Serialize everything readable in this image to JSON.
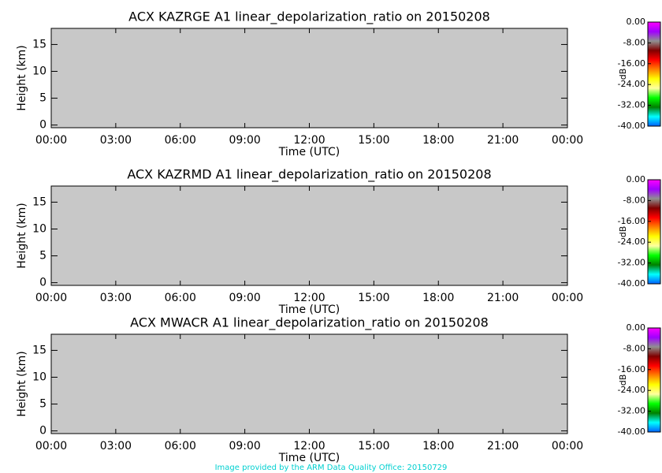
{
  "chart_data": [
    {
      "type": "heatmap",
      "title": "ACX KAZRGE A1 linear_depolarization_ratio on 20150208",
      "x_label": "Time (UTC)",
      "y_label": "Height (km)",
      "xlim": [
        0,
        24
      ],
      "xticks": [
        {
          "value": 0,
          "label": "00:00"
        },
        {
          "value": 3,
          "label": "03:00"
        },
        {
          "value": 6,
          "label": "06:00"
        },
        {
          "value": 9,
          "label": "09:00"
        },
        {
          "value": 12,
          "label": "12:00"
        },
        {
          "value": 15,
          "label": "15:00"
        },
        {
          "value": 18,
          "label": "18:00"
        },
        {
          "value": 21,
          "label": "21:00"
        },
        {
          "value": 24,
          "label": "00:00"
        }
      ],
      "ylim": [
        -0.5,
        18
      ],
      "yticks": [
        0,
        5,
        10,
        15
      ],
      "background": "#c8c8c8",
      "colorbar": {
        "label": "dB",
        "clim": [
          -40,
          0
        ],
        "ticks": [
          {
            "value": 0,
            "label": "0.00"
          },
          {
            "value": -8,
            "label": "-8.00"
          },
          {
            "value": -16,
            "label": "-16.00"
          },
          {
            "value": -24,
            "label": "-24.00"
          },
          {
            "value": -32,
            "label": "-32.00"
          },
          {
            "value": -40,
            "label": "-40.00"
          }
        ],
        "colormap": [
          "#ff00ff",
          "#a000ff",
          "#909090",
          "#800000",
          "#ff0000",
          "#ff8000",
          "#ffff00",
          "#ffffa0",
          "#00ff00",
          "#008000",
          "#00ffff",
          "#0060ff"
        ]
      }
    },
    {
      "type": "heatmap",
      "title": "ACX KAZRMD A1 linear_depolarization_ratio on 20150208",
      "x_label": "Time (UTC)",
      "y_label": "Height (km)",
      "xlim": [
        0,
        24
      ],
      "xticks": [
        {
          "value": 0,
          "label": "00:00"
        },
        {
          "value": 3,
          "label": "03:00"
        },
        {
          "value": 6,
          "label": "06:00"
        },
        {
          "value": 9,
          "label": "09:00"
        },
        {
          "value": 12,
          "label": "12:00"
        },
        {
          "value": 15,
          "label": "15:00"
        },
        {
          "value": 18,
          "label": "18:00"
        },
        {
          "value": 21,
          "label": "21:00"
        },
        {
          "value": 24,
          "label": "00:00"
        }
      ],
      "ylim": [
        -0.5,
        18
      ],
      "yticks": [
        0,
        5,
        10,
        15
      ],
      "background": "#c8c8c8",
      "colorbar": {
        "label": "dB",
        "clim": [
          -40,
          0
        ],
        "ticks": [
          {
            "value": 0,
            "label": "0.00"
          },
          {
            "value": -8,
            "label": "-8.00"
          },
          {
            "value": -16,
            "label": "-16.00"
          },
          {
            "value": -24,
            "label": "-24.00"
          },
          {
            "value": -32,
            "label": "-32.00"
          },
          {
            "value": -40,
            "label": "-40.00"
          }
        ],
        "colormap": [
          "#ff00ff",
          "#a000ff",
          "#909090",
          "#800000",
          "#ff0000",
          "#ff8000",
          "#ffff00",
          "#ffffa0",
          "#00ff00",
          "#008000",
          "#00ffff",
          "#0060ff"
        ]
      }
    },
    {
      "type": "heatmap",
      "title": "ACX MWACR A1 linear_depolarization_ratio on 20150208",
      "x_label": "Time (UTC)",
      "y_label": "Height (km)",
      "xlim": [
        0,
        24
      ],
      "xticks": [
        {
          "value": 0,
          "label": "00:00"
        },
        {
          "value": 3,
          "label": "03:00"
        },
        {
          "value": 6,
          "label": "06:00"
        },
        {
          "value": 9,
          "label": "09:00"
        },
        {
          "value": 12,
          "label": "12:00"
        },
        {
          "value": 15,
          "label": "15:00"
        },
        {
          "value": 18,
          "label": "18:00"
        },
        {
          "value": 21,
          "label": "21:00"
        },
        {
          "value": 24,
          "label": "00:00"
        }
      ],
      "ylim": [
        -0.5,
        18
      ],
      "yticks": [
        0,
        5,
        10,
        15
      ],
      "background": "#c8c8c8",
      "colorbar": {
        "label": "dB",
        "clim": [
          -40,
          0
        ],
        "ticks": [
          {
            "value": 0,
            "label": "0.00"
          },
          {
            "value": -8,
            "label": "-8.00"
          },
          {
            "value": -16,
            "label": "-16.00"
          },
          {
            "value": -24,
            "label": "-24.00"
          },
          {
            "value": -32,
            "label": "-32.00"
          },
          {
            "value": -40,
            "label": "-40.00"
          }
        ],
        "colormap": [
          "#ff00ff",
          "#a000ff",
          "#909090",
          "#800000",
          "#ff0000",
          "#ff8000",
          "#ffff00",
          "#ffffa0",
          "#00ff00",
          "#008000",
          "#00ffff",
          "#0060ff"
        ]
      }
    }
  ],
  "footer": "Image provided by the ARM Data Quality Office: 20150729"
}
